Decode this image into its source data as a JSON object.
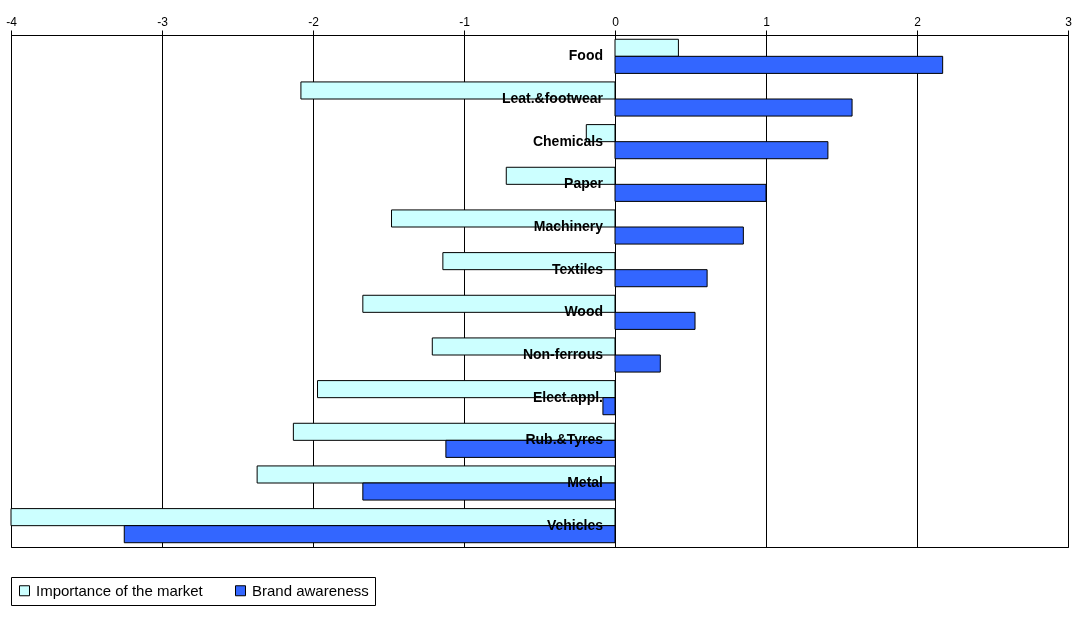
{
  "chart_data": {
    "type": "bar",
    "orientation": "horizontal",
    "categories": [
      "Food",
      "Leat.&footwear",
      "Chemicals",
      "Paper",
      "Machinery",
      "Textiles",
      "Wood",
      "Non-ferrous",
      "Elect.appl.",
      "Rub.&Tyres",
      "Metal",
      "Vehicles"
    ],
    "series": [
      {
        "name": "Importance of the market",
        "color": "#ccffff",
        "values": [
          0.42,
          -2.08,
          -0.19,
          -0.72,
          -1.48,
          -1.14,
          -1.67,
          -1.21,
          -1.97,
          -2.13,
          -2.37,
          -4.0
        ]
      },
      {
        "name": "Brand awareness",
        "color": "#3366ff",
        "values": [
          2.17,
          1.57,
          1.41,
          1.0,
          0.85,
          0.61,
          0.53,
          0.3,
          -0.08,
          -1.12,
          -1.67,
          -3.25
        ]
      }
    ],
    "xlim": [
      -4,
      3
    ],
    "xticks": [
      -4,
      -3,
      -2,
      -1,
      0,
      1,
      2,
      3
    ],
    "grid": "x",
    "legend": "bottom"
  }
}
